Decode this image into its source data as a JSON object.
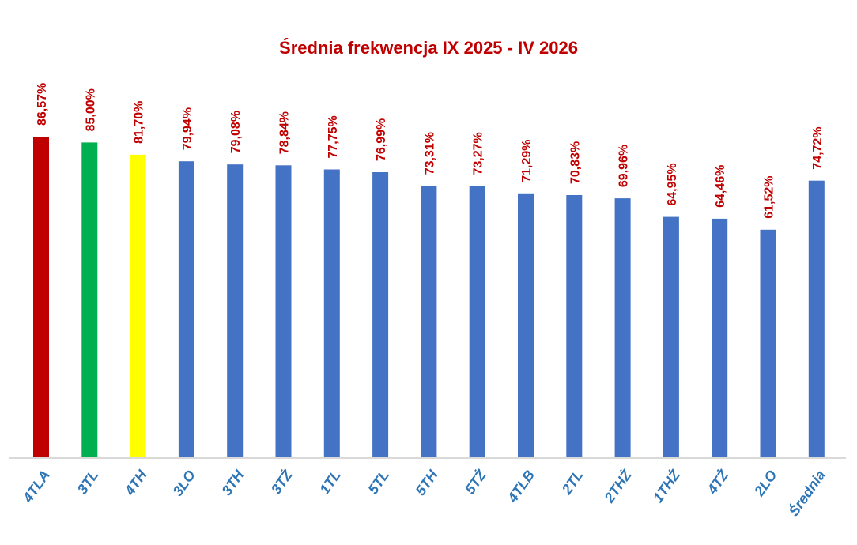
{
  "chart_data": {
    "type": "bar",
    "title": "Średnia frekwencja IX 2025 - IV 2026",
    "xlabel": "",
    "ylabel": "",
    "ylim": [
      0,
      86.57
    ],
    "grid": false,
    "legend": "none",
    "categories": [
      "4TLA",
      "3TL",
      "4TH",
      "3LO",
      "3TH",
      "3TŻ",
      "1TL",
      "5TL",
      "5TH",
      "5TŻ",
      "4TLB",
      "2TL",
      "2THŻ",
      "1THŻ",
      "4TŻ",
      "2LO",
      "Średnia"
    ],
    "values": [
      86.57,
      85.0,
      81.7,
      79.94,
      79.08,
      78.84,
      77.75,
      76.99,
      73.31,
      73.27,
      71.29,
      70.83,
      69.96,
      64.95,
      64.46,
      61.52,
      74.72
    ],
    "value_labels": [
      "86,57%",
      "85,00%",
      "81,70%",
      "79,94%",
      "79,08%",
      "78,84%",
      "77,75%",
      "76,99%",
      "73,31%",
      "73,27%",
      "71,29%",
      "70,83%",
      "69,96%",
      "64,95%",
      "64,46%",
      "61,52%",
      "74,72%"
    ],
    "bar_colors": [
      "#c00000",
      "#00b050",
      "#ffff00",
      "#4472c4",
      "#4472c4",
      "#4472c4",
      "#4472c4",
      "#4472c4",
      "#4472c4",
      "#4472c4",
      "#4472c4",
      "#4472c4",
      "#4472c4",
      "#4472c4",
      "#4472c4",
      "#4472c4",
      "#4472c4"
    ],
    "title_color": "#c00000",
    "label_color": "#c00000",
    "category_color": "#2e75b6",
    "axis_color": "#d9d9d9"
  }
}
